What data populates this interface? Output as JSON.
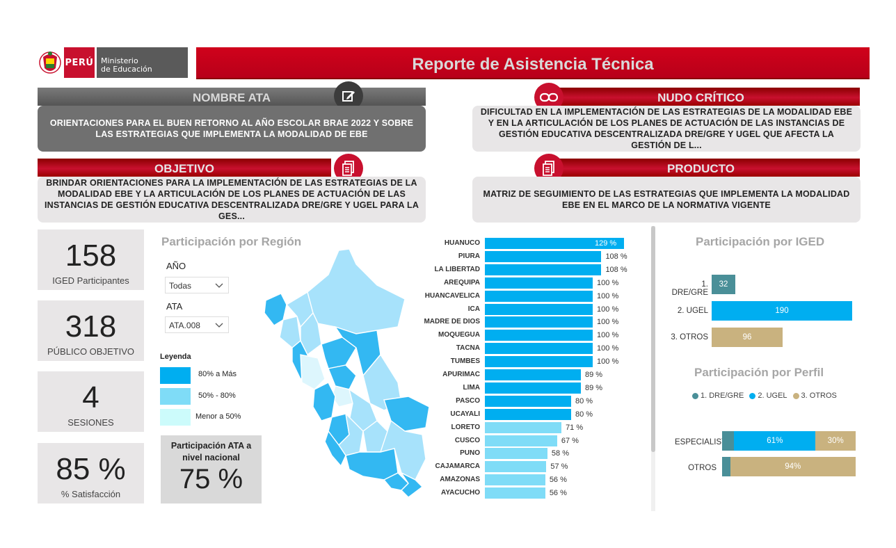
{
  "header": {
    "logo_country": "PERÚ",
    "logo_ministry_line1": "Ministerio",
    "logo_ministry_line2": "de Educación",
    "title": "Reporte de Asistencia Técnica"
  },
  "cards": {
    "nombre_ata": {
      "title": "NOMBRE ATA",
      "text": "ORIENTACIONES PARA EL BUEN RETORNO AL AÑO ESCOLAR BRAE 2022 Y SOBRE LAS ESTRATEGIAS QUE IMPLEMENTA LA MODALIDAD DE EBE"
    },
    "nudo_critico": {
      "title": "NUDO CRÍTICO",
      "text": "DIFICULTAD EN LA IMPLEMENTACIÓN DE LAS ESTRATEGIAS DE LA MODALIDAD EBE Y EN LA ARTICULACIÓN DE LOS PLANES DE ACTUACIÓN DE LAS INSTANCIAS DE GESTIÓN EDUCATIVA DESCENTRALIZADA DRE/GRE Y UGEL QUE AFECTA LA GESTIÓN DE L..."
    },
    "objetivo": {
      "title": "OBJETIVO",
      "text": "BRINDAR ORIENTACIONES PARA LA IMPLEMENTACIÓN DE LAS ESTRATEGIAS DE LA MODALIDAD EBE Y LA ARTICULACIÓN DE LOS PLANES DE ACTUACIÓN DE LAS INSTANCIAS DE GESTIÓN EDUCATIVA DESCENTRALIZADA DRE/GRE Y UGEL PARA LA GES..."
    },
    "producto": {
      "title": "PRODUCTO",
      "text": "MATRIZ DE SEGUIMIENTO DE LAS ESTRATEGIAS QUE IMPLEMENTA LA MODALIDAD EBE EN EL MARCO DE LA NORMATIVA VIGENTE"
    }
  },
  "kpis": [
    {
      "value": "158",
      "label": "IGED Participantes"
    },
    {
      "value": "318",
      "label": "PÚBLICO OBJETIVO"
    },
    {
      "value": "4",
      "label": "SESIONES"
    },
    {
      "value": "85 %",
      "label": "% Satisfacción"
    }
  ],
  "region_panel": {
    "title": "Participación por Región",
    "filter_year_label": "AÑO",
    "filter_year_value": "Todas",
    "filter_ata_label": "ATA",
    "filter_ata_value": "ATA.008",
    "legend_title": "Leyenda",
    "legend": [
      {
        "label": "80% a Más",
        "color": "#00aef0"
      },
      {
        "label": "50% - 80%",
        "color": "#7fdcf7"
      },
      {
        "label": "Menor a 50%",
        "color": "#ccfbfb"
      }
    ],
    "national_label": "Participación ATA a nivel nacional",
    "national_value": "75 %"
  },
  "chart_data": [
    {
      "type": "bar",
      "orientation": "horizontal",
      "categories": [
        "HUANUCO",
        "PIURA",
        "LA LIBERTAD",
        "AREQUIPA",
        "HUANCAVELICA",
        "ICA",
        "MADRE DE DIOS",
        "MOQUEGUA",
        "TACNA",
        "TUMBES",
        "APURIMAC",
        "LIMA",
        "PASCO",
        "UCAYALI",
        "LORETO",
        "CUSCO",
        "PUNO",
        "CAJAMARCA",
        "AMAZONAS",
        "AYACUCHO"
      ],
      "values": [
        129,
        108,
        108,
        100,
        100,
        100,
        100,
        100,
        100,
        100,
        89,
        89,
        80,
        80,
        71,
        67,
        58,
        57,
        56,
        56
      ],
      "value_labels": [
        "129 %",
        "108 %",
        "108 %",
        "100 %",
        "100 %",
        "100 %",
        "100 %",
        "100 %",
        "100 %",
        "100 %",
        "89 %",
        "89 %",
        "80 %",
        "80 %",
        "71 %",
        "67 %",
        "58 %",
        "57 %",
        "56 %",
        "56 %"
      ],
      "colors": {
        "high": "#00aef0",
        "mid": "#7fdcf7"
      }
    },
    {
      "type": "bar",
      "orientation": "horizontal",
      "title": "Participación por IGED",
      "categories": [
        "1. DRE/GRE",
        "2. UGEL",
        "3. OTROS"
      ],
      "values": [
        32,
        190,
        96
      ],
      "colors": [
        "#4a8f98",
        "#00aef0",
        "#c9b27f"
      ]
    },
    {
      "type": "bar",
      "stacked": true,
      "orientation": "horizontal",
      "title": "Participación por Perfil",
      "legend": [
        "1. DRE/GRE",
        "2. UGEL",
        "3. OTROS"
      ],
      "legend_colors": [
        "#4a8f98",
        "#00aef0",
        "#c9b27f"
      ],
      "categories": [
        "ESPECIALISTAS",
        "OTROS"
      ],
      "series": [
        {
          "name": "1. DRE/GRE",
          "values": [
            9,
            6
          ]
        },
        {
          "name": "2. UGEL",
          "values": [
            61,
            0
          ]
        },
        {
          "name": "3. OTROS",
          "values": [
            30,
            94
          ]
        }
      ],
      "value_labels": [
        [
          "",
          "61%",
          "30%"
        ],
        [
          "",
          "",
          "94%"
        ]
      ]
    }
  ]
}
